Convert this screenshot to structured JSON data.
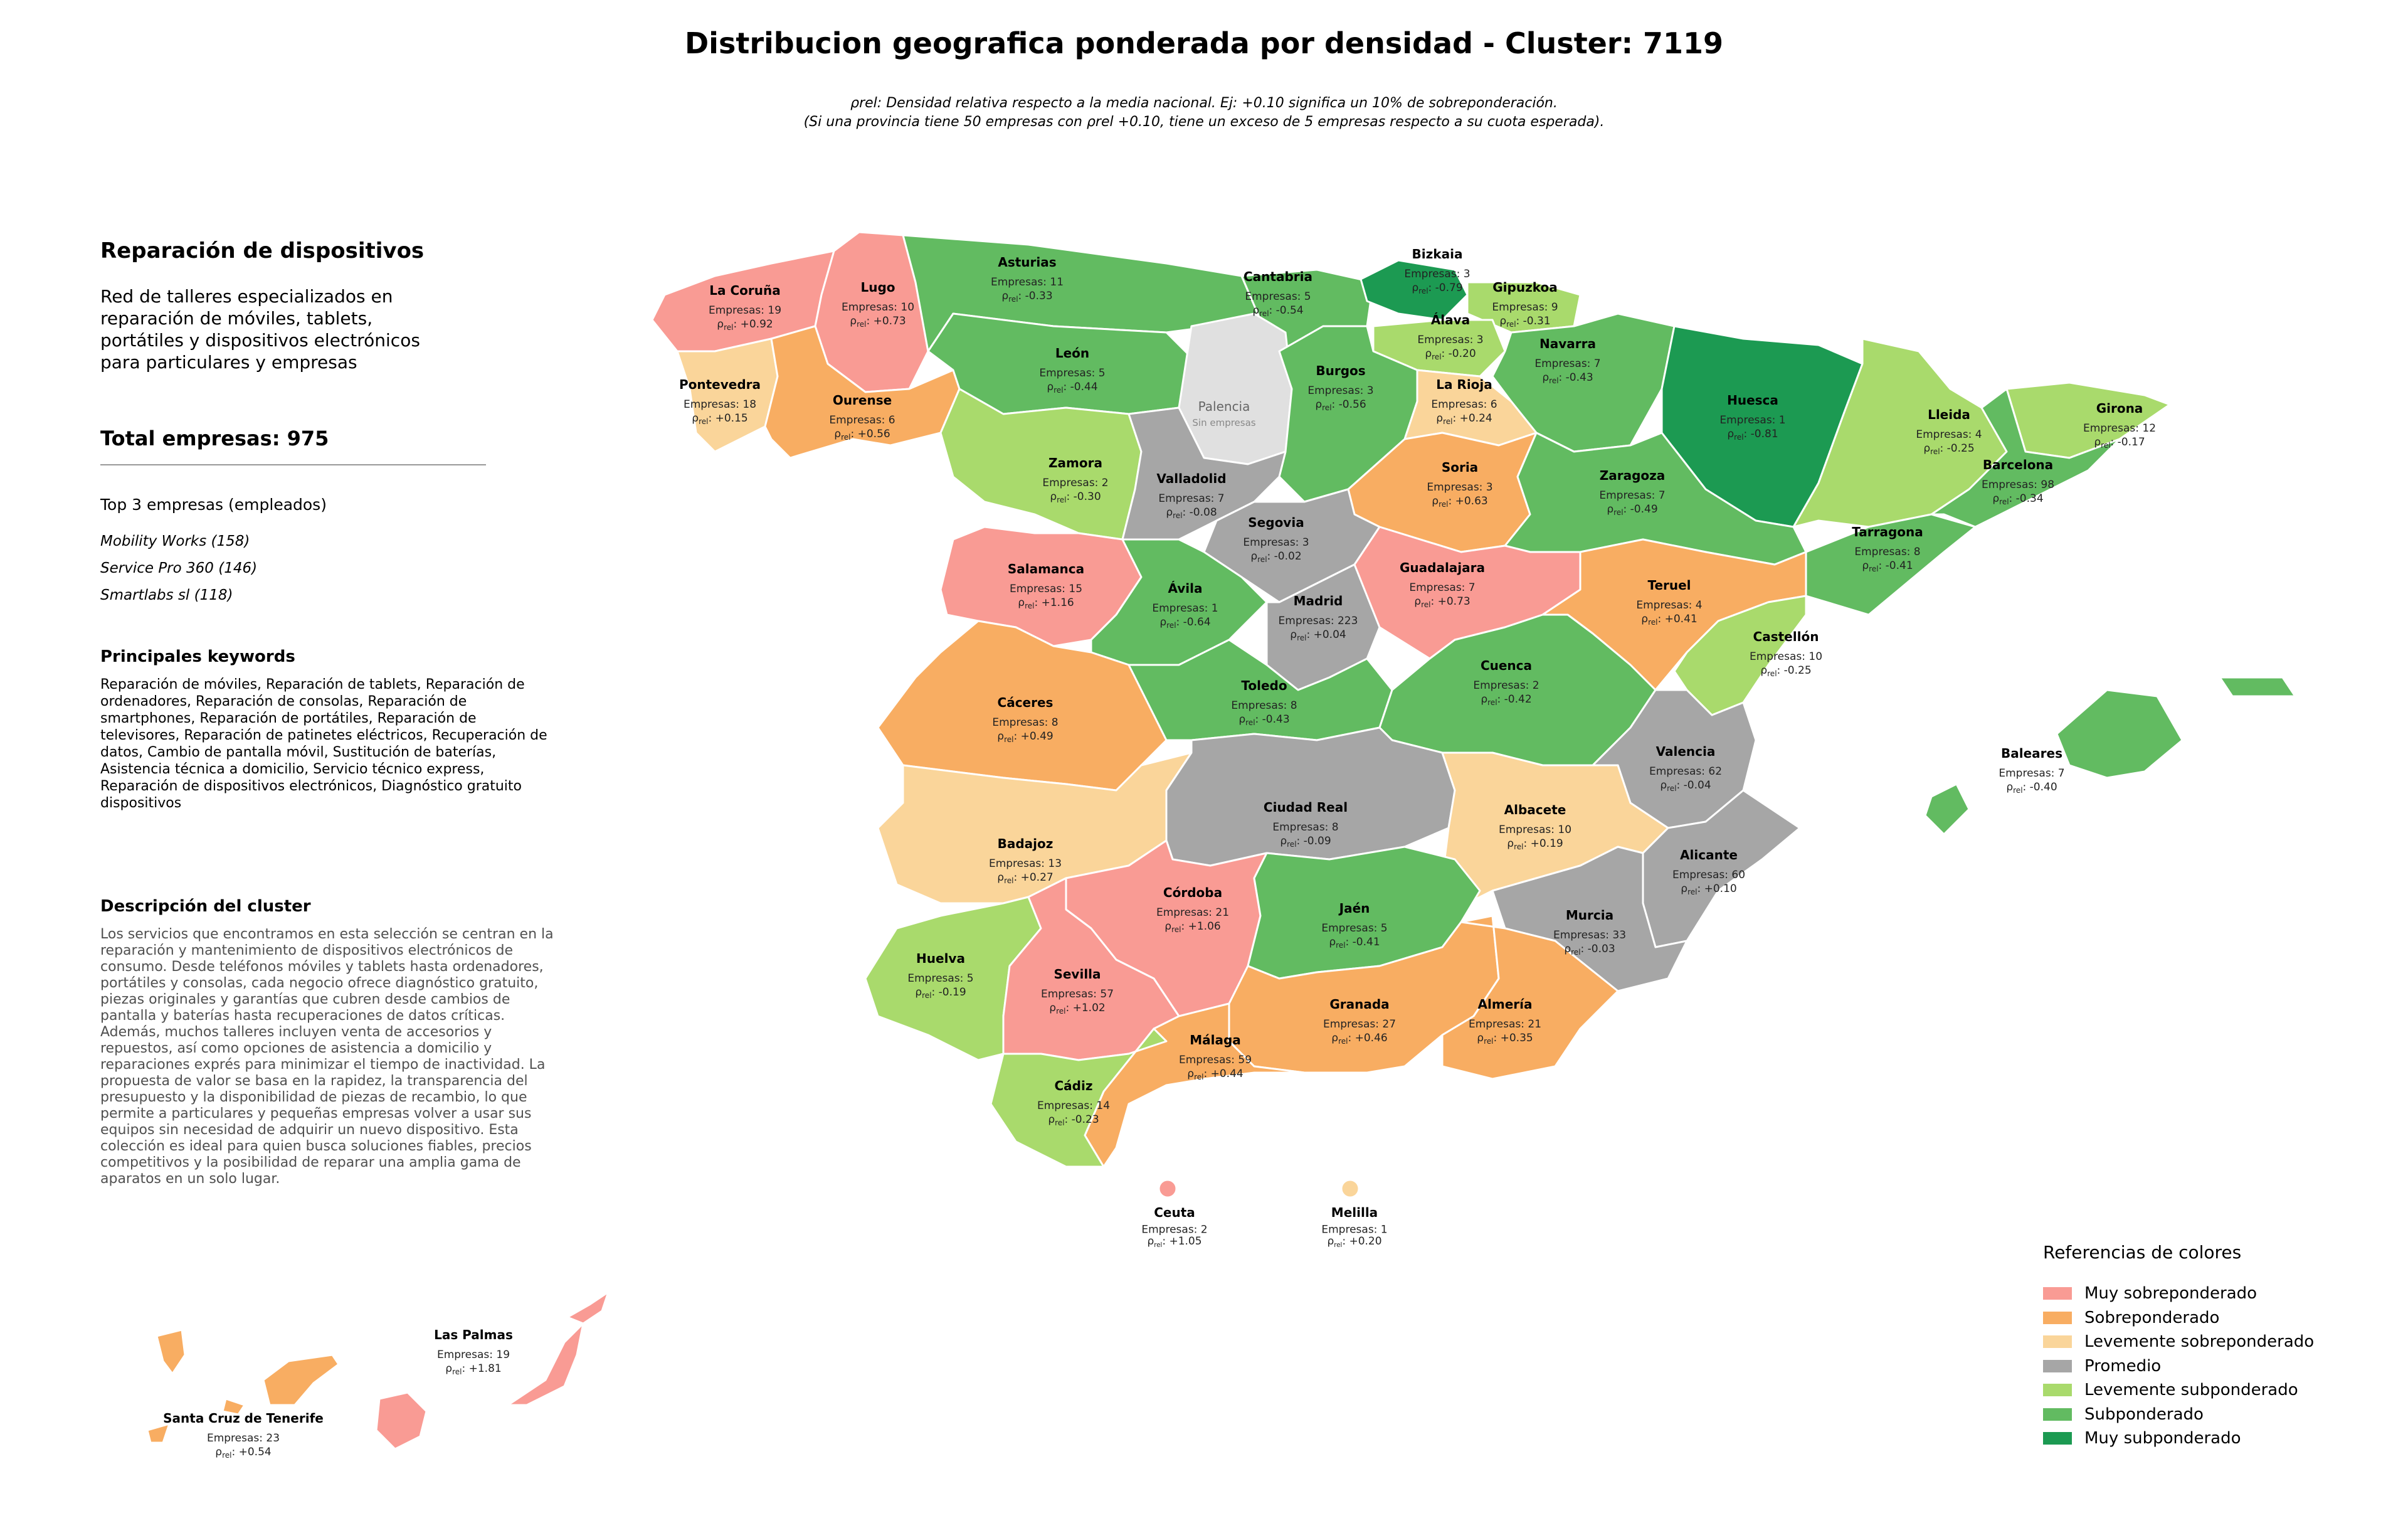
{
  "title": "Distribucion geografica ponderada por densidad - Cluster: 7119",
  "notes": {
    "line1": "ρrel: Densidad relativa respecto a la media nacional. Ej: +0.10 significa un 10% de sobreponderación.",
    "line2": "(Si una provincia tiene 50 empresas con ρrel +0.10, tiene un exceso de 5 empresas respecto a su cuota esperada)."
  },
  "panel": {
    "title": "Reparación de dispositivos",
    "description": "Red de talleres especializados en reparación de móviles, tablets, portátiles y dispositivos electrónicos para particulares y empresas",
    "total": "Total empresas: 975",
    "top_title": "Top 3 empresas (empleados)",
    "top": [
      "Mobility Works (158)",
      "Service Pro 360 (146)",
      "Smartlabs sl (118)"
    ],
    "keywords_title": "Principales keywords",
    "keywords": "Reparación de móviles, Reparación de tablets, Reparación de ordenadores, Reparación de consolas, Reparación de smartphones, Reparación de portátiles, Reparación de televisores, Reparación de patinetes eléctricos, Recuperación de datos, Cambio de pantalla móvil, Sustitución de baterías, Asistencia técnica a domicilio, Servicio técnico express, Reparación de dispositivos electrónicos, Diagnóstico gratuito dispositivos",
    "cluster_desc_title": "Descripción del cluster",
    "cluster_desc": "Los servicios que encontramos en esta selección se centran en la reparación y mantenimiento de dispositivos electrónicos de consumo. Desde teléfonos móviles y tablets hasta ordenadores, portátiles y consolas, cada negocio ofrece diagnóstico gratuito, piezas originales y garantías que cubren desde cambios de pantalla y baterías hasta recuperaciones de datos críticas. Además, muchos talleres incluyen venta de accesorios y repuestos, así como opciones de asistencia a domicilio y reparaciones exprés para minimizar el tiempo de inactividad. La propuesta de valor se basa en la rapidez, la transparencia del presupuesto y la disponibilidad de piezas de recambio, lo que permite a particulares y pequeñas empresas volver a usar sus equipos sin necesidad de adquirir un nuevo dispositivo. Esta colección es ideal para quien busca soluciones fiables, precios competitivos y la posibilidad de reparar una amplia gama de aparatos en un solo lugar."
  },
  "colors": {
    "muy_sobre": "#f99b94",
    "sobre": "#f8ad62",
    "lev_sobre": "#fad59a",
    "promedio": "#a6a6a6",
    "lev_sub": "#a9da6c",
    "sub": "#62bb61",
    "muy_sub": "#1c9a52",
    "sin": "#e0e0e0"
  },
  "legend": {
    "title": "Referencias de colores",
    "items": [
      {
        "label": "Muy sobreponderado",
        "color": "#f99b94"
      },
      {
        "label": "Sobreponderado",
        "color": "#f8ad62"
      },
      {
        "label": "Levemente sobreponderado",
        "color": "#fad59a"
      },
      {
        "label": "Promedio",
        "color": "#a6a6a6"
      },
      {
        "label": "Levemente subponderado",
        "color": "#a9da6c"
      },
      {
        "label": "Subponderado",
        "color": "#62bb61"
      },
      {
        "label": "Muy subponderado",
        "color": "#1c9a52"
      }
    ]
  },
  "provinces": {
    "coruna": {
      "name": "La Coruña",
      "count": "Empresas: 19",
      "rho": ": +0.92",
      "category": "muy_sobre"
    },
    "lugo": {
      "name": "Lugo",
      "count": "Empresas: 10",
      "rho": ": +0.73",
      "category": "muy_sobre"
    },
    "asturias": {
      "name": "Asturias",
      "count": "Empresas: 11",
      "rho": ": -0.33",
      "category": "sub"
    },
    "cantabria": {
      "name": "Cantabria",
      "count": "Empresas: 5",
      "rho": ": -0.54",
      "category": "sub"
    },
    "bizkaia": {
      "name": "Bizkaia",
      "count": "Empresas: 3",
      "rho": ": -0.79",
      "category": "muy_sub"
    },
    "gipuzkoa": {
      "name": "Gipuzkoa",
      "count": "Empresas: 9",
      "rho": ": -0.31",
      "category": "lev_sub"
    },
    "alava": {
      "name": "Álava",
      "count": "Empresas: 3",
      "rho": ": -0.20",
      "category": "lev_sub"
    },
    "navarra": {
      "name": "Navarra",
      "count": "Empresas: 7",
      "rho": ": -0.43",
      "category": "sub"
    },
    "huesca": {
      "name": "Huesca",
      "count": "Empresas: 1",
      "rho": ": -0.81",
      "category": "muy_sub"
    },
    "girona": {
      "name": "Girona",
      "count": "Empresas: 12",
      "rho": ": -0.17",
      "category": "lev_sub"
    },
    "lleida": {
      "name": "Lleida",
      "count": "Empresas: 4",
      "rho": ": -0.25",
      "category": "lev_sub"
    },
    "barcelona": {
      "name": "Barcelona",
      "count": "Empresas: 98",
      "rho": ": -0.34",
      "category": "sub"
    },
    "tarragona": {
      "name": "Tarragona",
      "count": "Empresas: 8",
      "rho": ": -0.41",
      "category": "sub"
    },
    "pontevedra": {
      "name": "Pontevedra",
      "count": "Empresas: 18",
      "rho": ": +0.15",
      "category": "lev_sobre"
    },
    "ourense": {
      "name": "Ourense",
      "count": "Empresas: 6",
      "rho": ": +0.56",
      "category": "sobre"
    },
    "leon": {
      "name": "León",
      "count": "Empresas: 5",
      "rho": ": -0.44",
      "category": "sub"
    },
    "palencia": {
      "name": "Palencia",
      "nodata": "Sin empresas",
      "category": "sin"
    },
    "burgos": {
      "name": "Burgos",
      "count": "Empresas: 3",
      "rho": ": -0.56",
      "category": "sub"
    },
    "rioja": {
      "name": "La Rioja",
      "count": "Empresas: 6",
      "rho": ": +0.24",
      "category": "lev_sobre"
    },
    "soria": {
      "name": "Soria",
      "count": "Empresas: 3",
      "rho": ": +0.63",
      "category": "sobre"
    },
    "zaragoza": {
      "name": "Zaragoza",
      "count": "Empresas: 7",
      "rho": ": -0.49",
      "category": "sub"
    },
    "zamora": {
      "name": "Zamora",
      "count": "Empresas: 2",
      "rho": ": -0.30",
      "category": "lev_sub"
    },
    "valladolid": {
      "name": "Valladolid",
      "count": "Empresas: 7",
      "rho": ": -0.08",
      "category": "promedio"
    },
    "segovia": {
      "name": "Segovia",
      "count": "Empresas: 3",
      "rho": ": -0.02",
      "category": "promedio"
    },
    "salamanca": {
      "name": "Salamanca",
      "count": "Empresas: 15",
      "rho": ": +1.16",
      "category": "muy_sobre"
    },
    "avila": {
      "name": "Ávila",
      "count": "Empresas: 1",
      "rho": ": -0.64",
      "category": "sub"
    },
    "madrid": {
      "name": "Madrid",
      "count": "Empresas: 223",
      "rho": ": +0.04",
      "category": "promedio"
    },
    "guadalajara": {
      "name": "Guadalajara",
      "count": "Empresas: 7",
      "rho": ": +0.73",
      "category": "muy_sobre"
    },
    "teruel": {
      "name": "Teruel",
      "count": "Empresas: 4",
      "rho": ": +0.41",
      "category": "sobre"
    },
    "castellon": {
      "name": "Castellón",
      "count": "Empresas: 10",
      "rho": ": -0.25",
      "category": "lev_sub"
    },
    "caceres": {
      "name": "Cáceres",
      "count": "Empresas: 8",
      "rho": ": +0.49",
      "category": "sobre"
    },
    "toledo": {
      "name": "Toledo",
      "count": "Empresas: 8",
      "rho": ": -0.43",
      "category": "sub"
    },
    "cuenca": {
      "name": "Cuenca",
      "count": "Empresas: 2",
      "rho": ": -0.42",
      "category": "sub"
    },
    "valencia": {
      "name": "Valencia",
      "count": "Empresas: 62",
      "rho": ": -0.04",
      "category": "promedio"
    },
    "badajoz": {
      "name": "Badajoz",
      "count": "Empresas: 13",
      "rho": ": +0.27",
      "category": "lev_sobre"
    },
    "ciudadreal": {
      "name": "Ciudad Real",
      "count": "Empresas: 8",
      "rho": ": -0.09",
      "category": "promedio"
    },
    "albacete": {
      "name": "Albacete",
      "count": "Empresas: 10",
      "rho": ": +0.19",
      "category": "lev_sobre"
    },
    "alicante": {
      "name": "Alicante",
      "count": "Empresas: 60",
      "rho": ": +0.10",
      "category": "promedio"
    },
    "cordoba": {
      "name": "Córdoba",
      "count": "Empresas: 21",
      "rho": ": +1.06",
      "category": "muy_sobre"
    },
    "jaen": {
      "name": "Jaén",
      "count": "Empresas: 5",
      "rho": ": -0.41",
      "category": "sub"
    },
    "murcia": {
      "name": "Murcia",
      "count": "Empresas: 33",
      "rho": ": -0.03",
      "category": "promedio"
    },
    "huelva": {
      "name": "Huelva",
      "count": "Empresas: 5",
      "rho": ": -0.19",
      "category": "lev_sub"
    },
    "sevilla": {
      "name": "Sevilla",
      "count": "Empresas: 57",
      "rho": ": +1.02",
      "category": "muy_sobre"
    },
    "granada": {
      "name": "Granada",
      "count": "Empresas: 27",
      "rho": ": +0.46",
      "category": "sobre"
    },
    "almeria": {
      "name": "Almería",
      "count": "Empresas: 21",
      "rho": ": +0.35",
      "category": "sobre"
    },
    "malaga": {
      "name": "Málaga",
      "count": "Empresas: 59",
      "rho": ": +0.44",
      "category": "sobre"
    },
    "cadiz": {
      "name": "Cádiz",
      "count": "Empresas: 14",
      "rho": ": -0.23",
      "category": "lev_sub"
    },
    "baleares": {
      "name": "Baleares",
      "count": "Empresas: 7",
      "rho": ": -0.40",
      "category": "sub"
    },
    "ceuta": {
      "name": "Ceuta",
      "count": "Empresas: 2",
      "rho": ": +1.05",
      "category": "muy_sobre"
    },
    "melilla": {
      "name": "Melilla",
      "count": "Empresas: 1",
      "rho": ": +0.20",
      "category": "lev_sobre"
    },
    "laspalmas": {
      "name": "Las Palmas",
      "count": "Empresas: 19",
      "rho": ": +1.81",
      "category": "muy_sobre"
    },
    "tenerife": {
      "name": "Santa Cruz de Tenerife",
      "count": "Empresas: 23",
      "rho": ": +0.54",
      "category": "sobre"
    }
  }
}
